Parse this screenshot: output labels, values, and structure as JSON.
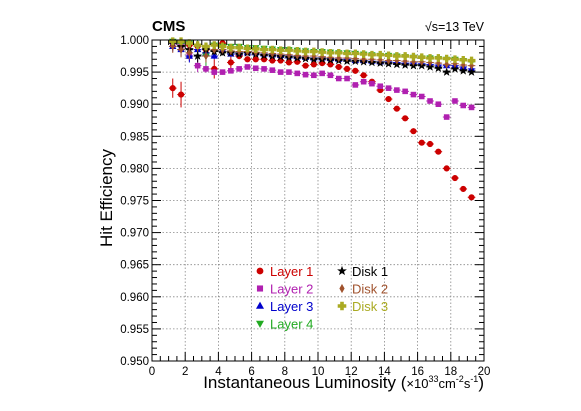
{
  "chart_data": {
    "type": "scatter",
    "experiment_label": "CMS",
    "energy_label": "√s=13 TeV",
    "xlabel": "Instantaneous Luminosity (×10³³cm⁻²s⁻¹)",
    "xlabel_main": "Instantaneous Luminosity (",
    "xlabel_unit": "×10",
    "xlabel_exp1": "33",
    "xlabel_unit2": "cm",
    "xlabel_exp2": "-2",
    "xlabel_unit3": "s",
    "xlabel_exp3": "-1",
    "xlabel_close": ")",
    "ylabel": "Hit Efficiency",
    "xlim": [
      0,
      20
    ],
    "ylim": [
      0.95,
      1.0
    ],
    "xticks": [
      "0",
      "2",
      "4",
      "6",
      "8",
      "10",
      "12",
      "14",
      "16",
      "18",
      "20"
    ],
    "yticks": [
      "0.950",
      "0.955",
      "0.960",
      "0.965",
      "0.970",
      "0.975",
      "0.980",
      "0.985",
      "0.990",
      "0.995",
      "1.000"
    ],
    "grid": true,
    "legend_position": "bottom-center",
    "series": [
      {
        "name": "Layer 1",
        "marker": "circle",
        "color": "#cc0000",
        "x": [
          1.25,
          1.75,
          2.25,
          2.75,
          3.25,
          3.75,
          4.25,
          4.75,
          5.25,
          5.75,
          6.25,
          6.75,
          7.25,
          7.75,
          8.25,
          8.75,
          9.25,
          9.75,
          10.25,
          10.75,
          11.25,
          11.75,
          12.25,
          12.75,
          13.25,
          13.75,
          14.25,
          14.75,
          15.25,
          15.75,
          16.25,
          16.75,
          17.25,
          17.75,
          18.25,
          18.75,
          19.25
        ],
        "y": [
          0.9925,
          0.9915,
          0.9992,
          0.999,
          0.9985,
          0.9955,
          0.9995,
          0.9965,
          0.9975,
          0.997,
          0.997,
          0.997,
          0.9968,
          0.9968,
          0.9965,
          0.9966,
          0.996,
          0.9962,
          0.9964,
          0.9962,
          0.9958,
          0.9955,
          0.9952,
          0.9945,
          0.9935,
          0.9922,
          0.9908,
          0.9893,
          0.9878,
          0.9858,
          0.984,
          0.9838,
          0.9826,
          0.98,
          0.9785,
          0.9768,
          0.9755
        ],
        "yerr": [
          0.0015,
          0.002,
          0.0005,
          0.0008,
          0.001,
          0.0015,
          0.0004,
          0.001,
          0.0005,
          0.0004,
          0.0003,
          0.0002,
          0.0002,
          0.0002,
          0.0002,
          0.0002,
          0.0002,
          0.0002,
          0.0002,
          0.0002,
          0.0002,
          0.0002,
          0.0002,
          0.0002,
          0.0002,
          0.0002,
          0.0002,
          0.0002,
          0.0002,
          0.0002,
          0.0002,
          0.0002,
          0.0002,
          0.0002,
          0.0002,
          0.0002,
          0.0003
        ]
      },
      {
        "name": "Layer 2",
        "marker": "square",
        "color": "#b020b0",
        "x": [
          1.25,
          1.75,
          2.25,
          2.75,
          3.25,
          3.75,
          4.25,
          4.75,
          5.25,
          5.75,
          6.25,
          6.75,
          7.25,
          7.75,
          8.25,
          8.75,
          9.25,
          9.75,
          10.25,
          10.75,
          11.25,
          11.75,
          12.25,
          12.75,
          13.25,
          13.75,
          14.25,
          14.75,
          15.25,
          15.75,
          16.25,
          16.75,
          17.25,
          17.75,
          18.25,
          18.75,
          19.25
        ],
        "y": [
          0.9995,
          0.9992,
          0.9975,
          0.996,
          0.9955,
          0.995,
          0.995,
          0.9952,
          0.9955,
          0.9958,
          0.9956,
          0.9955,
          0.9953,
          0.995,
          0.995,
          0.9948,
          0.9946,
          0.9945,
          0.9948,
          0.9945,
          0.994,
          0.994,
          0.993,
          0.9935,
          0.9932,
          0.9928,
          0.9925,
          0.9922,
          0.992,
          0.9915,
          0.9912,
          0.9905,
          0.99,
          0.988,
          0.9905,
          0.9898,
          0.9895
        ],
        "yerr": [
          0.0005,
          0.0005,
          0.0008,
          0.001,
          0.0006,
          0.0005,
          0.0004,
          0.0003,
          0.0003,
          0.0002,
          0.0002,
          0.0002,
          0.0002,
          0.0002,
          0.0002,
          0.0002,
          0.0002,
          0.0002,
          0.0002,
          0.0002,
          0.0002,
          0.0002,
          0.0002,
          0.0002,
          0.0002,
          0.0002,
          0.0002,
          0.0002,
          0.0002,
          0.0002,
          0.0002,
          0.0002,
          0.0002,
          0.0002,
          0.0002,
          0.0002,
          0.0003
        ]
      },
      {
        "name": "Layer 3",
        "marker": "triangle-up",
        "color": "#0000cc",
        "x": [
          1.25,
          1.75,
          2.25,
          2.75,
          3.25,
          3.75,
          4.25,
          4.75,
          5.25,
          5.75,
          6.25,
          6.75,
          7.25,
          7.75,
          8.25,
          8.75,
          9.25,
          9.75,
          10.25,
          10.75,
          11.25,
          11.75,
          12.25,
          12.75,
          13.25,
          13.75,
          14.25,
          14.75,
          15.25,
          15.75,
          16.25,
          16.75,
          17.25,
          17.75,
          18.25,
          18.75,
          19.25
        ],
        "y": [
          0.999,
          0.9985,
          0.9975,
          0.9985,
          0.998,
          0.9975,
          0.9985,
          0.9978,
          0.998,
          0.998,
          0.998,
          0.9978,
          0.9977,
          0.9976,
          0.9975,
          0.9974,
          0.9973,
          0.9972,
          0.9972,
          0.9971,
          0.997,
          0.997,
          0.9968,
          0.9968,
          0.9967,
          0.9966,
          0.9966,
          0.9965,
          0.9964,
          0.9964,
          0.9963,
          0.9962,
          0.9961,
          0.996,
          0.996,
          0.9958,
          0.9955
        ],
        "yerr": [
          0.0008,
          0.001,
          0.001,
          0.0008,
          0.0006,
          0.0005,
          0.0004,
          0.0003,
          0.0003,
          0.0002,
          0.0002,
          0.0002,
          0.0002,
          0.0002,
          0.0002,
          0.0002,
          0.0002,
          0.0002,
          0.0002,
          0.0002,
          0.0002,
          0.0002,
          0.0002,
          0.0002,
          0.0002,
          0.0002,
          0.0002,
          0.0002,
          0.0002,
          0.0002,
          0.0002,
          0.0002,
          0.0002,
          0.0002,
          0.0002,
          0.0002,
          0.0003
        ]
      },
      {
        "name": "Layer 4",
        "marker": "triangle-down",
        "color": "#22aa22",
        "x": [
          1.25,
          1.75,
          2.25,
          2.75,
          3.25,
          3.75,
          4.25,
          4.75,
          5.25,
          5.75,
          6.25,
          6.75,
          7.25,
          7.75,
          8.25,
          8.75,
          9.25,
          9.75,
          10.25,
          10.75,
          11.25,
          11.75,
          12.25,
          12.75,
          13.25,
          13.75,
          14.25,
          14.75,
          15.25,
          15.75,
          16.25,
          16.75,
          17.25,
          17.75,
          18.25,
          18.75,
          19.25
        ],
        "y": [
          0.9998,
          0.9995,
          0.9995,
          0.999,
          0.9975,
          0.9992,
          0.999,
          0.999,
          0.999,
          0.9988,
          0.9988,
          0.9987,
          0.9986,
          0.9985,
          0.9985,
          0.9984,
          0.9983,
          0.9982,
          0.9982,
          0.9981,
          0.998,
          0.998,
          0.9979,
          0.9978,
          0.9977,
          0.9976,
          0.9976,
          0.9975,
          0.9974,
          0.9973,
          0.9972,
          0.9972,
          0.9971,
          0.997,
          0.997,
          0.9968,
          0.9966
        ],
        "yerr": [
          0.0004,
          0.0005,
          0.0006,
          0.001,
          0.0015,
          0.0005,
          0.0004,
          0.0003,
          0.0003,
          0.0002,
          0.0002,
          0.0002,
          0.0002,
          0.0002,
          0.0002,
          0.0002,
          0.0002,
          0.0002,
          0.0002,
          0.0002,
          0.0002,
          0.0002,
          0.0002,
          0.0002,
          0.0002,
          0.0002,
          0.0002,
          0.0002,
          0.0002,
          0.0002,
          0.0002,
          0.0002,
          0.0002,
          0.0002,
          0.0002,
          0.0002,
          0.0003
        ]
      },
      {
        "name": "Disk 1",
        "marker": "star",
        "color": "#000000",
        "x": [
          1.25,
          1.75,
          2.25,
          2.75,
          3.25,
          3.75,
          4.25,
          4.75,
          5.25,
          5.75,
          6.25,
          6.75,
          7.25,
          7.75,
          8.25,
          8.75,
          9.25,
          9.75,
          10.25,
          10.75,
          11.25,
          11.75,
          12.25,
          12.75,
          13.25,
          13.75,
          14.25,
          14.75,
          15.25,
          15.75,
          16.25,
          16.75,
          17.25,
          17.75,
          18.25,
          18.75,
          19.25
        ],
        "y": [
          0.9995,
          0.999,
          0.9985,
          0.9975,
          0.9985,
          0.9982,
          0.998,
          0.998,
          0.9978,
          0.998,
          0.9978,
          0.9976,
          0.9975,
          0.9974,
          0.9973,
          0.9972,
          0.9971,
          0.997,
          0.997,
          0.9969,
          0.9968,
          0.9967,
          0.9967,
          0.9966,
          0.9965,
          0.9964,
          0.9963,
          0.9962,
          0.9961,
          0.996,
          0.996,
          0.9958,
          0.9956,
          0.995,
          0.9955,
          0.9952,
          0.995
        ],
        "yerr": [
          0.0005,
          0.0008,
          0.0008,
          0.001,
          0.0006,
          0.0005,
          0.0004,
          0.0003,
          0.0003,
          0.0002,
          0.0002,
          0.0002,
          0.0002,
          0.0002,
          0.0002,
          0.0002,
          0.0002,
          0.0002,
          0.0002,
          0.0002,
          0.0002,
          0.0002,
          0.0002,
          0.0002,
          0.0002,
          0.0002,
          0.0002,
          0.0002,
          0.0002,
          0.0002,
          0.0002,
          0.0002,
          0.0002,
          0.0002,
          0.0002,
          0.0002,
          0.0003
        ]
      },
      {
        "name": "Disk 2",
        "marker": "diamond",
        "color": "#a0522d",
        "x": [
          1.25,
          1.75,
          2.25,
          2.75,
          3.25,
          3.75,
          4.25,
          4.75,
          5.25,
          5.75,
          6.25,
          6.75,
          7.25,
          7.75,
          8.25,
          8.75,
          9.25,
          9.75,
          10.25,
          10.75,
          11.25,
          11.75,
          12.25,
          12.75,
          13.25,
          13.75,
          14.25,
          14.75,
          15.25,
          15.75,
          16.25,
          16.75,
          17.25,
          17.75,
          18.25,
          18.75,
          19.25
        ],
        "y": [
          0.999,
          0.9985,
          0.998,
          0.999,
          0.9975,
          0.9985,
          0.9985,
          0.9983,
          0.9982,
          0.9982,
          0.9981,
          0.998,
          0.9979,
          0.9978,
          0.9977,
          0.9976,
          0.9975,
          0.9975,
          0.9974,
          0.9973,
          0.9972,
          0.9972,
          0.9971,
          0.997,
          0.997,
          0.9969,
          0.9968,
          0.9968,
          0.9967,
          0.9966,
          0.9966,
          0.9965,
          0.9964,
          0.9962,
          0.9963,
          0.9961,
          0.996
        ],
        "yerr": [
          0.001,
          0.0012,
          0.001,
          0.0008,
          0.001,
          0.0005,
          0.0004,
          0.0003,
          0.0003,
          0.0002,
          0.0002,
          0.0002,
          0.0002,
          0.0002,
          0.0002,
          0.0002,
          0.0002,
          0.0002,
          0.0002,
          0.0002,
          0.0002,
          0.0002,
          0.0002,
          0.0002,
          0.0002,
          0.0002,
          0.0002,
          0.0002,
          0.0002,
          0.0002,
          0.0002,
          0.0002,
          0.0002,
          0.0002,
          0.0002,
          0.0002,
          0.0003
        ]
      },
      {
        "name": "Disk 3",
        "marker": "cross",
        "color": "#aaaa22",
        "x": [
          1.25,
          1.75,
          2.25,
          2.75,
          3.25,
          3.75,
          4.25,
          4.75,
          5.25,
          5.75,
          6.25,
          6.75,
          7.25,
          7.75,
          8.25,
          8.75,
          9.25,
          9.75,
          10.25,
          10.75,
          11.25,
          11.75,
          12.25,
          12.75,
          13.25,
          13.75,
          14.25,
          14.75,
          15.25,
          15.75,
          16.25,
          16.75,
          17.25,
          17.75,
          18.25,
          18.75,
          19.25
        ],
        "y": [
          0.9998,
          0.9998,
          0.9995,
          0.9992,
          0.999,
          0.9992,
          0.999,
          0.9988,
          0.9988,
          0.9987,
          0.9986,
          0.9985,
          0.9985,
          0.9984,
          0.9984,
          0.9983,
          0.9982,
          0.9982,
          0.9981,
          0.998,
          0.998,
          0.9979,
          0.9979,
          0.9978,
          0.9977,
          0.9977,
          0.9976,
          0.9975,
          0.9975,
          0.9974,
          0.9973,
          0.9972,
          0.9972,
          0.9971,
          0.997,
          0.9969,
          0.9968
        ],
        "yerr": [
          0.0004,
          0.0004,
          0.0005,
          0.0006,
          0.0006,
          0.0004,
          0.0004,
          0.0003,
          0.0003,
          0.0002,
          0.0002,
          0.0002,
          0.0002,
          0.0002,
          0.0002,
          0.0002,
          0.0002,
          0.0002,
          0.0002,
          0.0002,
          0.0002,
          0.0002,
          0.0002,
          0.0002,
          0.0002,
          0.0002,
          0.0002,
          0.0002,
          0.0002,
          0.0002,
          0.0002,
          0.0002,
          0.0002,
          0.0002,
          0.0002,
          0.0002,
          0.0003
        ]
      }
    ]
  }
}
